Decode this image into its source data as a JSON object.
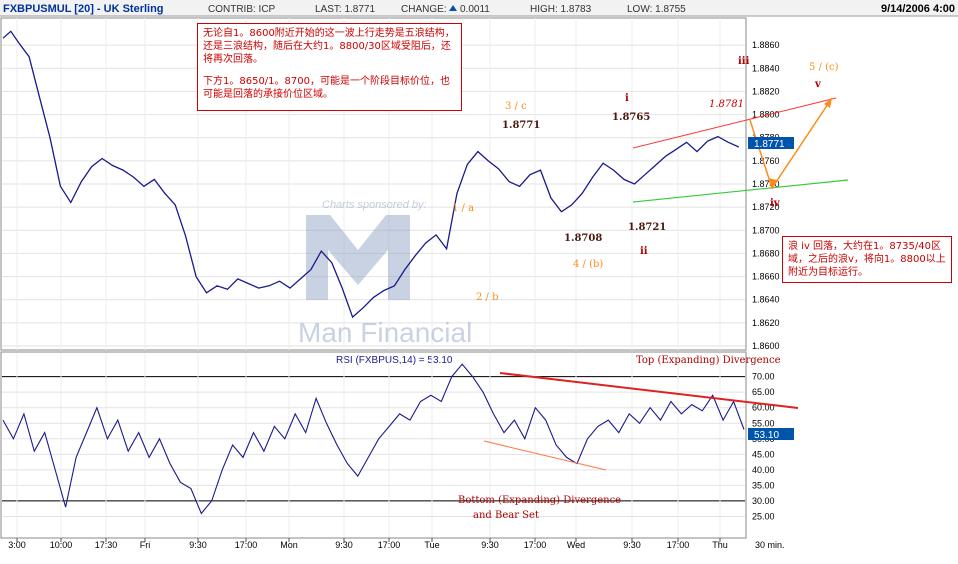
{
  "header": {
    "title": "FXBPUSMUL [20] - UK Sterling",
    "contrib": "CONTRIB: ICP",
    "last": "LAST: 1.8771",
    "change_label": "CHANGE:",
    "change_value": "0.0011",
    "high": "HIGH: 1.8783",
    "low": "LOW: 1.8755",
    "date": "9/14/2006 4:00"
  },
  "notes": {
    "top": [
      "无论自1。8600附近开始的这一波上行走势是五浪结构，还是三浪结构，随后在大约1。8800/30区域受阻后，还将再次回落。",
      "下方1。8650/1。8700，可能是一个阶段目标价位，也可能是回落的承接价位区域。"
    ],
    "right": "浪 iv 回落，大约在1。8735/40区域，之后的浪v，将向1。8800以上附近为目标运行。"
  },
  "watermark": {
    "sponsor": "Charts sponsored by:",
    "brand": "Man Financial"
  },
  "colors": {
    "price": "#1a1a8c",
    "red": "#cc0000",
    "green": "#33cc33",
    "orange": "#ff8c1a",
    "accent": "#0055aa"
  },
  "chart_data": [
    {
      "type": "line",
      "series_label": "FXBPUSMUL [20]",
      "y_ticks": [
        "1.8860",
        "1.8840",
        "1.8820",
        "1.8800",
        "1.8780",
        "1.8760",
        "1.8740",
        "1.8720",
        "1.8700",
        "1.8680",
        "1.8660",
        "1.8640",
        "1.8620",
        "1.8600"
      ],
      "ylim": [
        1.86,
        1.888
      ],
      "last_value": "1.8771",
      "approx_path": [
        [
          0,
          1.8866
        ],
        [
          3,
          1.8872
        ],
        [
          6,
          1.8862
        ],
        [
          10,
          1.885
        ],
        [
          14,
          1.8815
        ],
        [
          18,
          1.878
        ],
        [
          22,
          1.8738
        ],
        [
          26,
          1.8724
        ],
        [
          30,
          1.8742
        ],
        [
          34,
          1.8755
        ],
        [
          38,
          1.8762
        ],
        [
          42,
          1.8756
        ],
        [
          46,
          1.8752
        ],
        [
          50,
          1.8746
        ],
        [
          54,
          1.8738
        ],
        [
          58,
          1.8744
        ],
        [
          62,
          1.8732
        ],
        [
          66,
          1.8722
        ],
        [
          70,
          1.8695
        ],
        [
          74,
          1.866
        ],
        [
          78,
          1.8646
        ],
        [
          82,
          1.8652
        ],
        [
          86,
          1.8649
        ],
        [
          90,
          1.8658
        ],
        [
          94,
          1.8654
        ],
        [
          98,
          1.865
        ],
        [
          102,
          1.8652
        ],
        [
          106,
          1.8656
        ],
        [
          110,
          1.865
        ],
        [
          114,
          1.8658
        ],
        [
          118,
          1.8666
        ],
        [
          122,
          1.8682
        ],
        [
          126,
          1.8672
        ],
        [
          130,
          1.865
        ],
        [
          134,
          1.8625
        ],
        [
          138,
          1.8633
        ],
        [
          142,
          1.8642
        ],
        [
          146,
          1.8648
        ],
        [
          150,
          1.8652
        ],
        [
          154,
          1.8666
        ],
        [
          158,
          1.8678
        ],
        [
          162,
          1.8689
        ],
        [
          166,
          1.8696
        ],
        [
          170,
          1.8684
        ],
        [
          174,
          1.8732
        ],
        [
          178,
          1.8757
        ],
        [
          182,
          1.8768
        ],
        [
          186,
          1.876
        ],
        [
          190,
          1.8753
        ],
        [
          194,
          1.8742
        ],
        [
          198,
          1.8738
        ],
        [
          202,
          1.8748
        ],
        [
          206,
          1.8752
        ],
        [
          210,
          1.8728
        ],
        [
          214,
          1.8716
        ],
        [
          218,
          1.8722
        ],
        [
          222,
          1.8732
        ],
        [
          226,
          1.8746
        ],
        [
          230,
          1.8758
        ],
        [
          234,
          1.8752
        ],
        [
          238,
          1.8744
        ],
        [
          242,
          1.874
        ],
        [
          246,
          1.8748
        ],
        [
          250,
          1.8756
        ],
        [
          254,
          1.8764
        ],
        [
          258,
          1.877
        ],
        [
          262,
          1.8776
        ],
        [
          266,
          1.8768
        ],
        [
          270,
          1.8777
        ],
        [
          274,
          1.8781
        ],
        [
          278,
          1.8776
        ],
        [
          282,
          1.8772
        ]
      ],
      "annotations": [
        {
          "text": "1 / a",
          "kind": "wave",
          "color": "#ff8c1a"
        },
        {
          "text": "2 / b",
          "kind": "wave",
          "color": "#ff8c1a"
        },
        {
          "text": "3 / c",
          "kind": "wave",
          "color": "#ff8c1a"
        },
        {
          "text": "4 / (b)",
          "kind": "wave",
          "color": "#ff8c1a"
        },
        {
          "text": "5 / (c)",
          "kind": "wave",
          "color": "#ff8c1a"
        },
        {
          "text": "i",
          "kind": "wave",
          "color": "#b00000"
        },
        {
          "text": "ii",
          "kind": "wave",
          "color": "#b00000"
        },
        {
          "text": "iii",
          "kind": "wave",
          "color": "#b00000"
        },
        {
          "text": "iv",
          "kind": "wave",
          "color": "#b00000"
        },
        {
          "text": "v",
          "kind": "wave",
          "color": "#b00000"
        },
        {
          "text": "1.8771",
          "kind": "price",
          "color": "#4a1a10"
        },
        {
          "text": "1.8765",
          "kind": "price",
          "color": "#4a1a10"
        },
        {
          "text": "1.8708",
          "kind": "price",
          "color": "#4a1a10"
        },
        {
          "text": "1.8721",
          "kind": "price",
          "color": "#4a1a10"
        },
        {
          "text": "1.8781",
          "kind": "price_italic",
          "color": "#cc0000"
        }
      ]
    },
    {
      "type": "line",
      "title": "RSI (FXBPUS,14) = 53.10",
      "y_ticks": [
        "70.00",
        "65.00",
        "60.00",
        "55.00",
        "50.00",
        "45.00",
        "40.00",
        "35.00",
        "30.00",
        "25.00"
      ],
      "ylim": [
        20,
        76
      ],
      "last_value": "53.10",
      "ref_lines": [
        70,
        30
      ],
      "approx_path": [
        [
          0,
          56
        ],
        [
          4,
          50
        ],
        [
          8,
          58
        ],
        [
          12,
          46
        ],
        [
          16,
          52
        ],
        [
          20,
          40
        ],
        [
          24,
          28
        ],
        [
          28,
          44
        ],
        [
          32,
          52
        ],
        [
          36,
          60
        ],
        [
          40,
          50
        ],
        [
          44,
          56
        ],
        [
          48,
          46
        ],
        [
          52,
          52
        ],
        [
          56,
          44
        ],
        [
          60,
          50
        ],
        [
          64,
          42
        ],
        [
          68,
          36
        ],
        [
          72,
          34
        ],
        [
          76,
          26
        ],
        [
          80,
          30
        ],
        [
          84,
          40
        ],
        [
          88,
          48
        ],
        [
          92,
          44
        ],
        [
          96,
          52
        ],
        [
          100,
          46
        ],
        [
          104,
          54
        ],
        [
          108,
          50
        ],
        [
          112,
          58
        ],
        [
          116,
          52
        ],
        [
          120,
          63
        ],
        [
          124,
          55
        ],
        [
          128,
          48
        ],
        [
          132,
          42
        ],
        [
          136,
          38
        ],
        [
          140,
          44
        ],
        [
          144,
          50
        ],
        [
          148,
          54
        ],
        [
          152,
          58
        ],
        [
          156,
          56
        ],
        [
          160,
          62
        ],
        [
          164,
          64
        ],
        [
          168,
          62
        ],
        [
          172,
          70
        ],
        [
          176,
          74
        ],
        [
          180,
          70
        ],
        [
          184,
          65
        ],
        [
          188,
          58
        ],
        [
          192,
          52
        ],
        [
          196,
          56
        ],
        [
          200,
          50
        ],
        [
          204,
          60
        ],
        [
          208,
          56
        ],
        [
          212,
          48
        ],
        [
          216,
          44
        ],
        [
          220,
          42
        ],
        [
          224,
          50
        ],
        [
          228,
          54
        ],
        [
          232,
          56
        ],
        [
          236,
          52
        ],
        [
          240,
          58
        ],
        [
          244,
          55
        ],
        [
          248,
          60
        ],
        [
          252,
          56
        ],
        [
          256,
          62
        ],
        [
          260,
          58
        ],
        [
          264,
          61
        ],
        [
          268,
          59
        ],
        [
          272,
          64
        ],
        [
          276,
          56
        ],
        [
          280,
          62
        ],
        [
          284,
          53
        ]
      ],
      "annotations": [
        {
          "text": "Top  (Expanding) Divergence",
          "color": "#b00000"
        },
        {
          "text": "Bottom  (Expanding) Divergence",
          "color": "#b00000"
        },
        {
          "text": "and  Bear Set",
          "color": "#b00000"
        }
      ]
    }
  ],
  "x_axis": {
    "labels": [
      "3:00",
      "10:00",
      "17:30",
      "Fri",
      "9:30",
      "17:00",
      "Mon",
      "9:30",
      "17:00",
      "Tue",
      "9:30",
      "17:00",
      "Wed",
      "9:30",
      "17:00",
      "Thu"
    ],
    "period": "30 min."
  }
}
